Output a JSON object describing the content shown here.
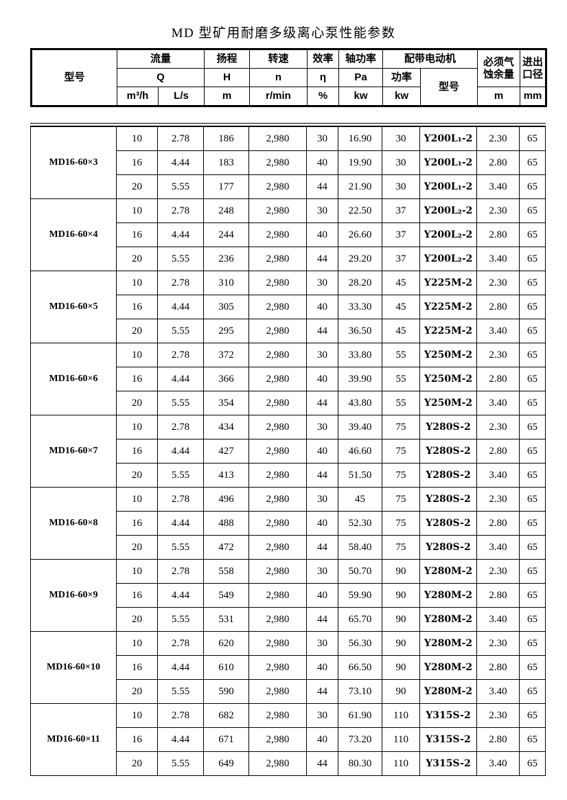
{
  "title": "MD 型矿用耐磨多级离心泵性能参数",
  "table": {
    "header": {
      "model_label": "型号",
      "flow_label": "流量",
      "flow_symbol": "Q",
      "flow_unit_m3h": "m³/h",
      "flow_unit_ls": "L/s",
      "head_label": "扬程",
      "head_symbol": "H",
      "head_unit": "m",
      "speed_label": "转速",
      "speed_symbol": "n",
      "speed_unit": "r/min",
      "efficiency_label": "效率",
      "efficiency_symbol": "η",
      "efficiency_unit": "%",
      "shaft_power_label": "轴功率",
      "shaft_power_symbol": "Pa",
      "shaft_power_unit": "kw",
      "motor_label": "配带电动机",
      "motor_power_label": "功率",
      "motor_power_unit": "kw",
      "motor_model_label": "型号",
      "npsh_label_line1": "必须气",
      "npsh_label_line2": "蚀余量",
      "npsh_unit": "m",
      "port_label_line1": "进出",
      "port_label_line2": "口径",
      "port_unit": "mm"
    },
    "groups": [
      {
        "model": "MD16-60×3",
        "rows": [
          [
            "10",
            "2.78",
            "186",
            "2,980",
            "30",
            "16.90",
            "30",
            "Y200L₁-2",
            "2.30",
            "65"
          ],
          [
            "16",
            "4.44",
            "183",
            "2,980",
            "40",
            "19.90",
            "30",
            "Y200L₁-2",
            "2.80",
            "65"
          ],
          [
            "20",
            "5.55",
            "177",
            "2,980",
            "44",
            "21.90",
            "30",
            "Y200L₁-2",
            "3.40",
            "65"
          ]
        ]
      },
      {
        "model": "MD16-60×4",
        "rows": [
          [
            "10",
            "2.78",
            "248",
            "2,980",
            "30",
            "22.50",
            "37",
            "Y200L₂-2",
            "2.30",
            "65"
          ],
          [
            "16",
            "4.44",
            "244",
            "2,980",
            "40",
            "26.60",
            "37",
            "Y200L₂-2",
            "2.80",
            "65"
          ],
          [
            "20",
            "5.55",
            "236",
            "2,980",
            "44",
            "29.20",
            "37",
            "Y200L₂-2",
            "3.40",
            "65"
          ]
        ]
      },
      {
        "model": "MD16-60×5",
        "rows": [
          [
            "10",
            "2.78",
            "310",
            "2,980",
            "30",
            "28.20",
            "45",
            "Y225M-2",
            "2.30",
            "65"
          ],
          [
            "16",
            "4.44",
            "305",
            "2,980",
            "40",
            "33.30",
            "45",
            "Y225M-2",
            "2.80",
            "65"
          ],
          [
            "20",
            "5.55",
            "295",
            "2,980",
            "44",
            "36.50",
            "45",
            "Y225M-2",
            "3.40",
            "65"
          ]
        ]
      },
      {
        "model": "MD16-60×6",
        "rows": [
          [
            "10",
            "2.78",
            "372",
            "2,980",
            "30",
            "33.80",
            "55",
            "Y250M-2",
            "2.30",
            "65"
          ],
          [
            "16",
            "4.44",
            "366",
            "2,980",
            "40",
            "39.90",
            "55",
            "Y250M-2",
            "2.80",
            "65"
          ],
          [
            "20",
            "5.55",
            "354",
            "2,980",
            "44",
            "43.80",
            "55",
            "Y250M-2",
            "3.40",
            "65"
          ]
        ]
      },
      {
        "model": "MD16-60×7",
        "rows": [
          [
            "10",
            "2.78",
            "434",
            "2,980",
            "30",
            "39.40",
            "75",
            "Y280S-2",
            "2.30",
            "65"
          ],
          [
            "16",
            "4.44",
            "427",
            "2,980",
            "40",
            "46.60",
            "75",
            "Y280S-2",
            "2.80",
            "65"
          ],
          [
            "20",
            "5.55",
            "413",
            "2,980",
            "44",
            "51.50",
            "75",
            "Y280S-2",
            "3.40",
            "65"
          ]
        ]
      },
      {
        "model": "MD16-60×8",
        "rows": [
          [
            "10",
            "2.78",
            "496",
            "2,980",
            "30",
            "45",
            "75",
            "Y280S-2",
            "2.30",
            "65"
          ],
          [
            "16",
            "4.44",
            "488",
            "2,980",
            "40",
            "52.30",
            "75",
            "Y280S-2",
            "2.80",
            "65"
          ],
          [
            "20",
            "5.55",
            "472",
            "2,980",
            "44",
            "58.40",
            "75",
            "Y280S-2",
            "3.40",
            "65"
          ]
        ]
      },
      {
        "model": "MD16-60×9",
        "rows": [
          [
            "10",
            "2.78",
            "558",
            "2,980",
            "30",
            "50.70",
            "90",
            "Y280M-2",
            "2.30",
            "65"
          ],
          [
            "16",
            "4.44",
            "549",
            "2,980",
            "40",
            "59.90",
            "90",
            "Y280M-2",
            "2.80",
            "65"
          ],
          [
            "20",
            "5.55",
            "531",
            "2,980",
            "44",
            "65.70",
            "90",
            "Y280M-2",
            "3.40",
            "65"
          ]
        ]
      },
      {
        "model": "MD16-60×10",
        "rows": [
          [
            "10",
            "2.78",
            "620",
            "2,980",
            "30",
            "56.30",
            "90",
            "Y280M-2",
            "2.30",
            "65"
          ],
          [
            "16",
            "4.44",
            "610",
            "2,980",
            "40",
            "66.50",
            "90",
            "Y280M-2",
            "2.80",
            "65"
          ],
          [
            "20",
            "5.55",
            "590",
            "2,980",
            "44",
            "73.10",
            "90",
            "Y280M-2",
            "3.40",
            "65"
          ]
        ]
      },
      {
        "model": "MD16-60×11",
        "rows": [
          [
            "10",
            "2.78",
            "682",
            "2,980",
            "30",
            "61.90",
            "110",
            "Y315S-2",
            "2.30",
            "65"
          ],
          [
            "16",
            "4.44",
            "671",
            "2,980",
            "40",
            "73.20",
            "110",
            "Y315S-2",
            "2.80",
            "65"
          ],
          [
            "20",
            "5.55",
            "649",
            "2,980",
            "44",
            "80.30",
            "110",
            "Y315S-2",
            "3.40",
            "65"
          ]
        ]
      }
    ]
  }
}
